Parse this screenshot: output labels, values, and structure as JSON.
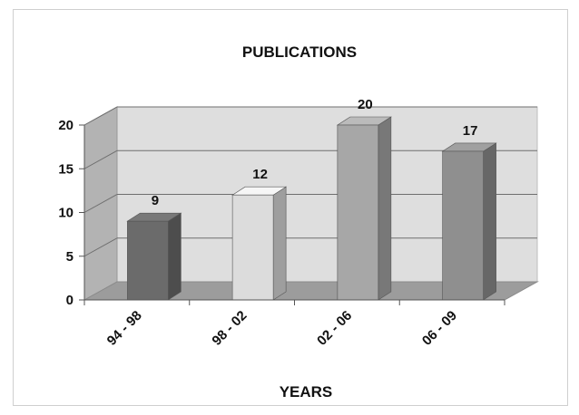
{
  "chart_data": {
    "type": "bar",
    "title": "PUBLICATIONS",
    "xlabel": "YEARS",
    "ylabel": "",
    "categories": [
      "94 - 98",
      "98 - 02",
      "02 - 06",
      "06 - 09"
    ],
    "values": [
      9,
      12,
      20,
      17
    ],
    "data_labels": [
      "9",
      "12",
      "20",
      "17"
    ],
    "ylim": [
      0,
      20
    ],
    "yticks": [
      0,
      5,
      10,
      15,
      20
    ],
    "grid": true,
    "legend": "none",
    "style": "3d-column",
    "colors": {
      "bar_fronts": [
        "#6b6b6b",
        "#dcdcdc",
        "#a7a7a7",
        "#8f8f8f"
      ],
      "back_wall": "#dedede",
      "side_wall": "#b3b3b3",
      "floor": "#9c9c9c"
    }
  }
}
